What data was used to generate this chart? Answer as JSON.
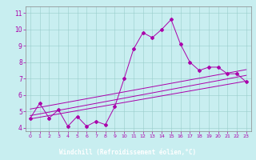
{
  "x": [
    0,
    1,
    2,
    3,
    4,
    5,
    6,
    7,
    8,
    9,
    10,
    11,
    12,
    13,
    14,
    15,
    16,
    17,
    18,
    19,
    20,
    21,
    22,
    23
  ],
  "y_data": [
    4.6,
    5.5,
    4.6,
    5.1,
    4.1,
    4.7,
    4.1,
    4.4,
    4.2,
    5.3,
    7.0,
    8.8,
    9.8,
    9.5,
    10.0,
    10.6,
    9.1,
    8.0,
    7.5,
    7.7,
    7.7,
    7.3,
    7.3,
    6.8
  ],
  "trend1_start": 5.15,
  "trend1_end": 7.55,
  "trend2_start": 4.75,
  "trend2_end": 7.2,
  "trend3_start": 4.55,
  "trend3_end": 6.85,
  "line_color": "#aa00aa",
  "bg_color": "#c8eef0",
  "grid_color": "#99cccc",
  "xlabel": "Windchill (Refroidissement éolien,°C)",
  "xlabel_bg": "#770077",
  "xlabel_fg": "#ffffff",
  "ylim_min": 3.8,
  "ylim_max": 11.4,
  "xlim_min": -0.5,
  "xlim_max": 23.5,
  "yticks": [
    4,
    5,
    6,
    7,
    8,
    9,
    10,
    11
  ],
  "xticks": [
    0,
    1,
    2,
    3,
    4,
    5,
    6,
    7,
    8,
    9,
    10,
    11,
    12,
    13,
    14,
    15,
    16,
    17,
    18,
    19,
    20,
    21,
    22,
    23
  ]
}
